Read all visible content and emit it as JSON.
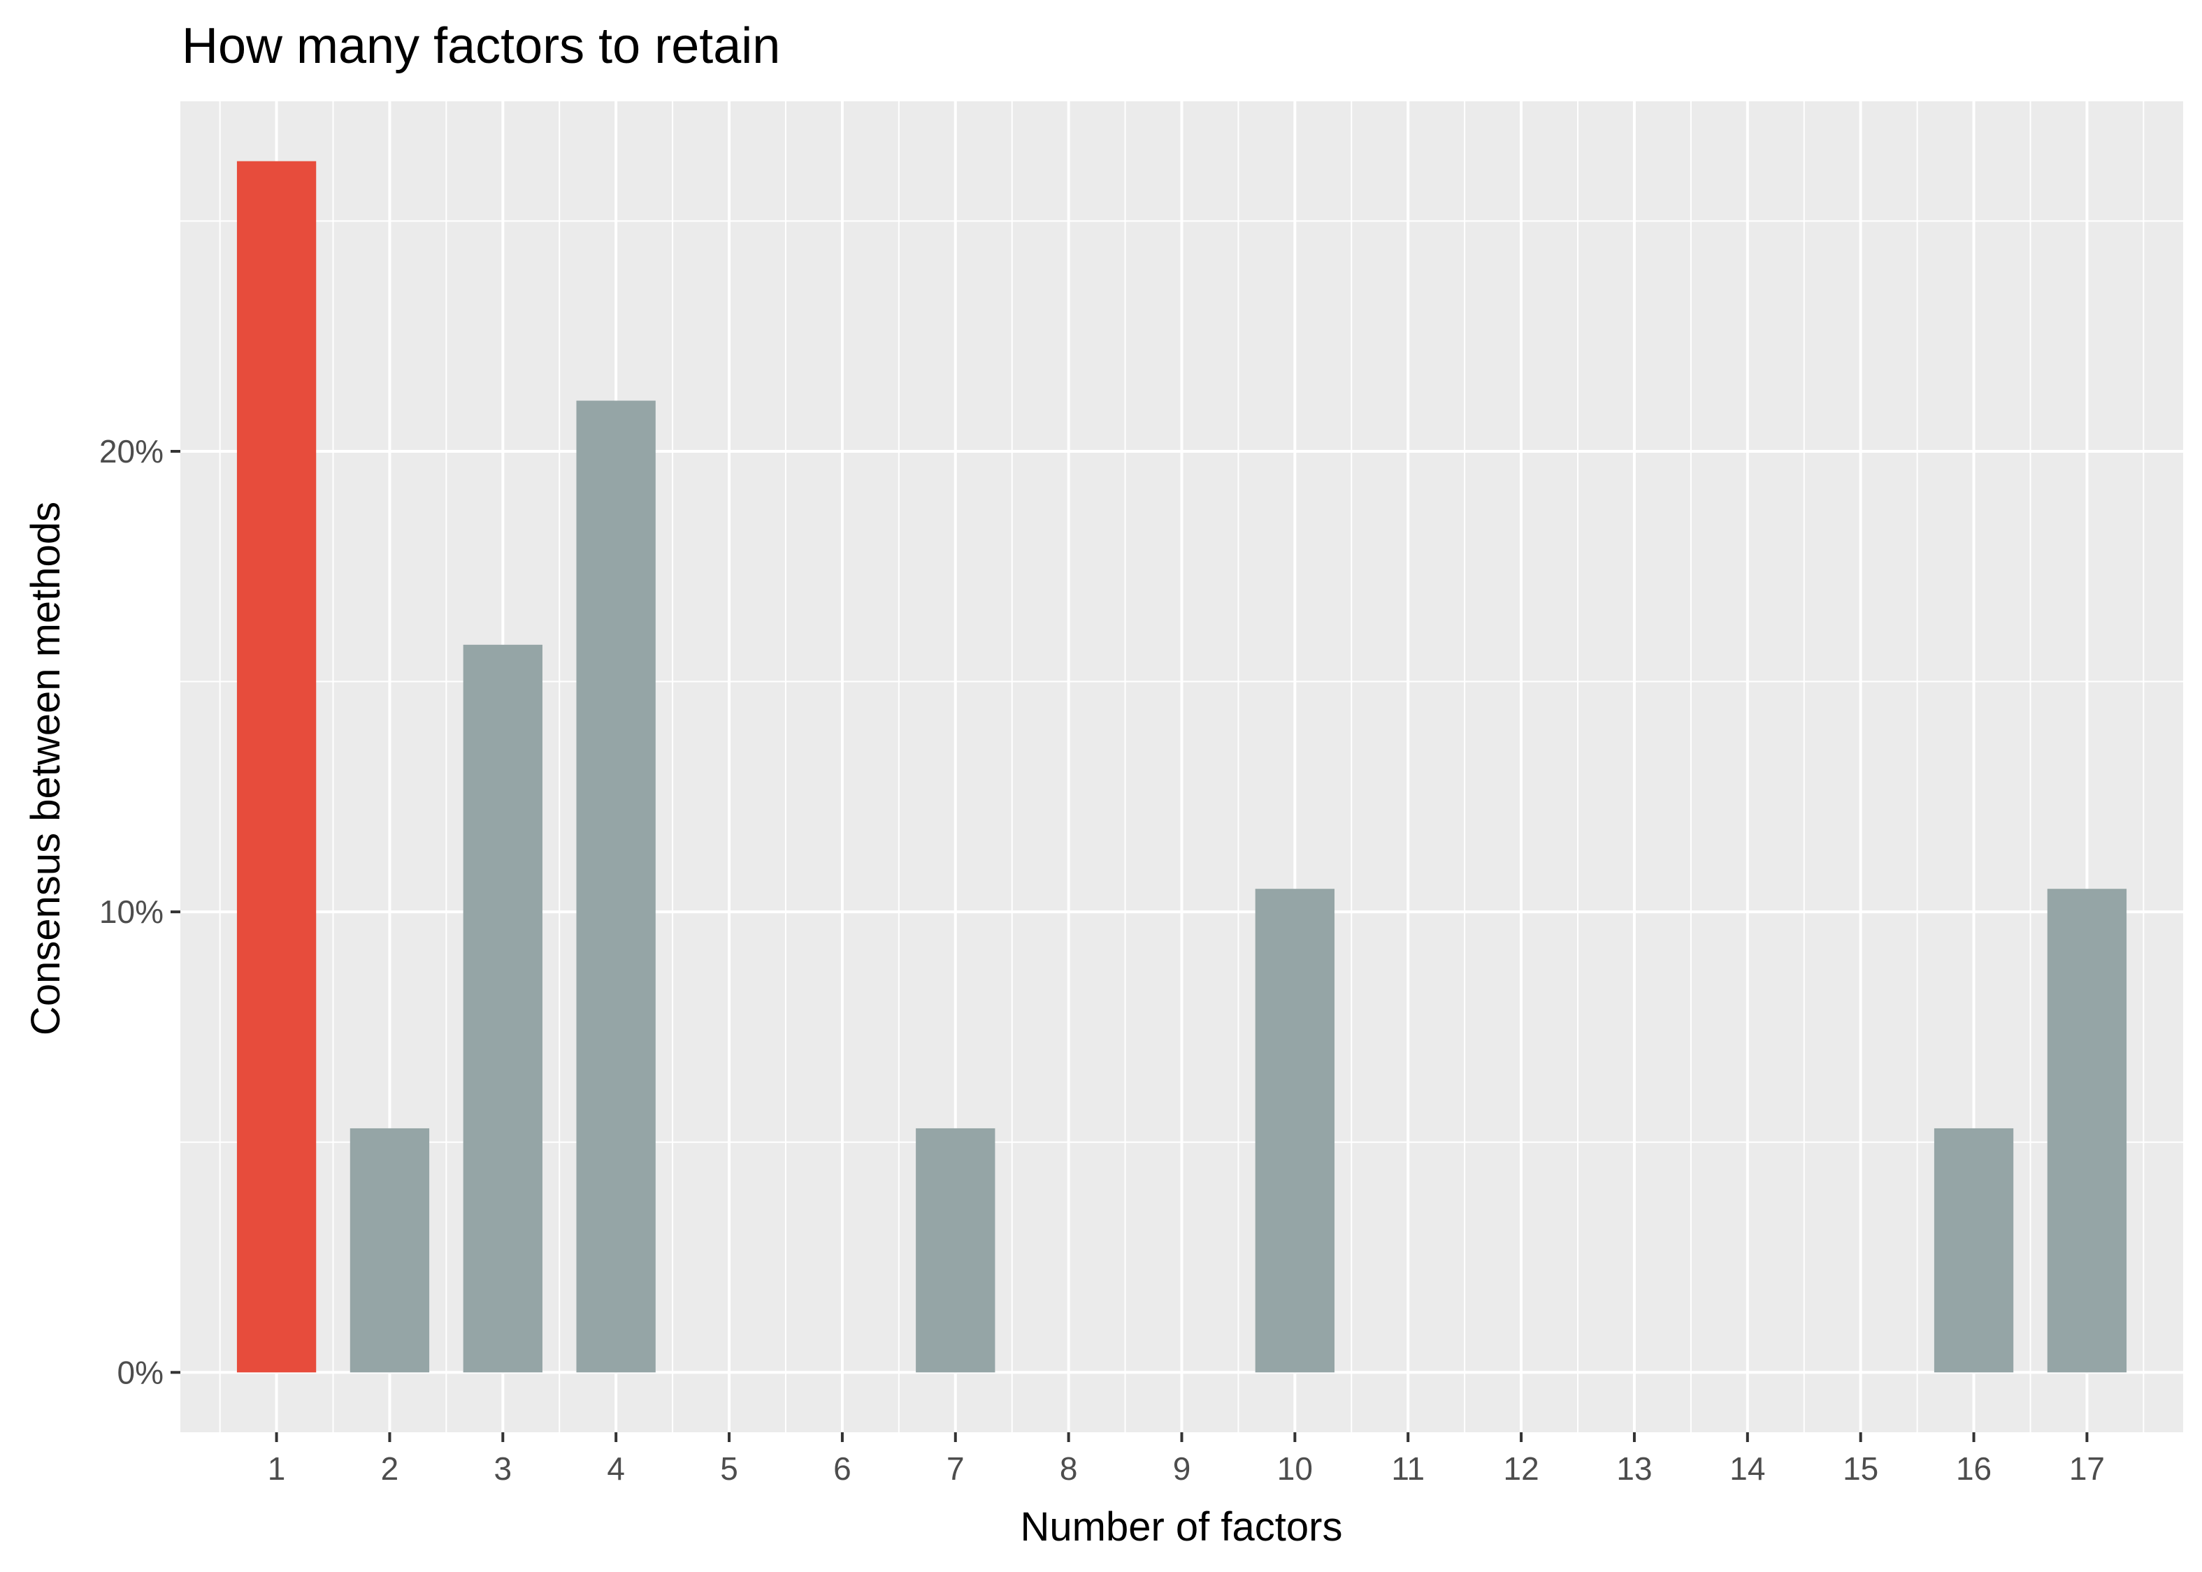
{
  "chart_data": {
    "type": "bar",
    "title": "How many factors to retain",
    "xlabel": "Number of factors",
    "ylabel": "Consensus between methods",
    "categories": [
      "1",
      "2",
      "3",
      "4",
      "5",
      "6",
      "7",
      "8",
      "9",
      "10",
      "11",
      "12",
      "13",
      "14",
      "15",
      "16",
      "17"
    ],
    "values": [
      26.3,
      5.3,
      15.8,
      21.1,
      0,
      0,
      5.3,
      0,
      0,
      10.5,
      0,
      0,
      0,
      0,
      0,
      5.3,
      10.5
    ],
    "value_unit": "%",
    "highlight_category": "1",
    "yticks": [
      0,
      10,
      20
    ],
    "ytick_labels": [
      "0%",
      "10%",
      "20%"
    ],
    "ylim": [
      -1.3,
      27.6
    ],
    "grid": true,
    "legend": "none",
    "colors": {
      "highlight": "#E74C3C",
      "default": "#95A5A6",
      "panel_background": "#EBEBEB",
      "grid": "#FFFFFF"
    }
  }
}
